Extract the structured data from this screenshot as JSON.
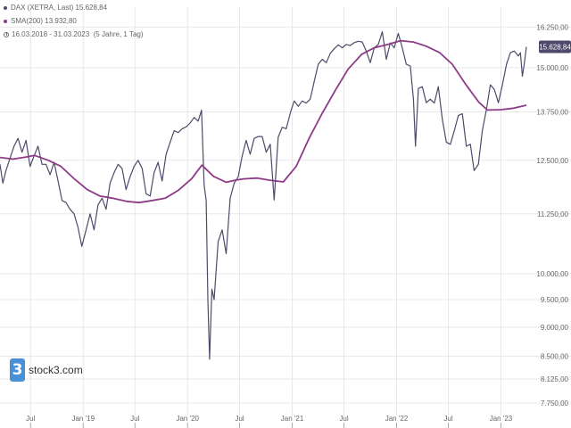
{
  "header": {
    "main_label": "DAX (XETRA, Last)",
    "main_value": "15.628,84",
    "sma_label": "SMA(200)",
    "sma_value": "13.932,80",
    "period": "16.03.2018 - 31.03.2023",
    "interval": "(5 Jahre, 1 Tag)"
  },
  "brand": {
    "logo_char": "3",
    "name": "stock3.com",
    "color": "#4a90d9"
  },
  "colors": {
    "price_line": "#4f4a6b",
    "sma_line": "#8e3b87",
    "badge": "#4f4a6b",
    "grid": "#e8e8e8",
    "text": "#666666"
  },
  "chart_data": {
    "type": "line",
    "title": "",
    "xlabel": "",
    "ylabel": "",
    "scale": "log",
    "ylim": [
      7750,
      16900
    ],
    "y_ticks": [
      16250,
      15000,
      13750,
      12500,
      11250,
      10000,
      9500,
      9000,
      8500,
      8125,
      7750
    ],
    "y_tick_labels": [
      "16.250,00",
      "15.000,00",
      "13.750,00",
      "12.500,00",
      "11.250,00",
      "10.000,00",
      "9.500,00",
      "9.000,00",
      "8.500,00",
      "8.125,00",
      "7.750,00"
    ],
    "x_range": [
      "2018-03-16",
      "2023-03-31"
    ],
    "x_ticks": [
      "2018-07-01",
      "2019-01-01",
      "2019-07-01",
      "2020-01-01",
      "2020-07-01",
      "2021-01-01",
      "2021-07-01",
      "2022-01-01",
      "2022-07-01",
      "2023-01-01"
    ],
    "x_tick_labels": [
      "Jul",
      "Jan '19",
      "Jul",
      "Jan '20",
      "Jul",
      "Jan '21",
      "Jul",
      "Jan '22",
      "Jul",
      "Jan '23"
    ],
    "last_value_label": "15.628,84",
    "last_value": 15628.84,
    "series": [
      {
        "name": "DAX (XETRA, Last)",
        "dates": [
          "2018-03-16",
          "2018-03-26",
          "2018-04-06",
          "2018-04-20",
          "2018-05-04",
          "2018-05-18",
          "2018-06-01",
          "2018-06-15",
          "2018-06-29",
          "2018-07-13",
          "2018-07-27",
          "2018-08-10",
          "2018-08-24",
          "2018-09-07",
          "2018-09-21",
          "2018-10-05",
          "2018-10-19",
          "2018-11-02",
          "2018-11-16",
          "2018-11-30",
          "2018-12-14",
          "2018-12-27",
          "2019-01-11",
          "2019-01-25",
          "2019-02-08",
          "2019-02-22",
          "2019-03-08",
          "2019-03-22",
          "2019-04-05",
          "2019-04-19",
          "2019-05-03",
          "2019-05-17",
          "2019-05-31",
          "2019-06-14",
          "2019-06-28",
          "2019-07-12",
          "2019-07-26",
          "2019-08-09",
          "2019-08-23",
          "2019-09-06",
          "2019-09-20",
          "2019-10-04",
          "2019-10-18",
          "2019-11-01",
          "2019-11-15",
          "2019-11-29",
          "2019-12-13",
          "2019-12-27",
          "2020-01-10",
          "2020-01-24",
          "2020-02-07",
          "2020-02-19",
          "2020-02-28",
          "2020-03-06",
          "2020-03-12",
          "2020-03-18",
          "2020-03-26",
          "2020-04-03",
          "2020-04-17",
          "2020-05-01",
          "2020-05-15",
          "2020-05-29",
          "2020-06-12",
          "2020-06-26",
          "2020-07-10",
          "2020-07-24",
          "2020-08-07",
          "2020-08-21",
          "2020-09-04",
          "2020-09-18",
          "2020-10-02",
          "2020-10-16",
          "2020-10-30",
          "2020-11-13",
          "2020-11-27",
          "2020-12-11",
          "2020-12-28",
          "2021-01-08",
          "2021-01-22",
          "2021-02-05",
          "2021-02-19",
          "2021-03-05",
          "2021-03-19",
          "2021-04-02",
          "2021-04-16",
          "2021-04-30",
          "2021-05-14",
          "2021-05-28",
          "2021-06-11",
          "2021-06-25",
          "2021-07-09",
          "2021-07-23",
          "2021-08-06",
          "2021-08-20",
          "2021-09-03",
          "2021-09-17",
          "2021-10-01",
          "2021-10-15",
          "2021-10-29",
          "2021-11-12",
          "2021-11-26",
          "2021-12-10",
          "2021-12-24",
          "2022-01-07",
          "2022-01-21",
          "2022-02-04",
          "2022-02-18",
          "2022-03-01",
          "2022-03-08",
          "2022-03-18",
          "2022-04-01",
          "2022-04-15",
          "2022-04-29",
          "2022-05-13",
          "2022-05-27",
          "2022-06-10",
          "2022-06-24",
          "2022-07-08",
          "2022-07-22",
          "2022-08-05",
          "2022-08-19",
          "2022-09-02",
          "2022-09-16",
          "2022-09-29",
          "2022-10-14",
          "2022-10-28",
          "2022-11-11",
          "2022-11-25",
          "2022-12-09",
          "2022-12-23",
          "2023-01-06",
          "2023-01-20",
          "2023-02-03",
          "2023-02-17",
          "2023-03-03",
          "2023-03-10",
          "2023-03-17",
          "2023-03-24",
          "2023-03-31"
        ],
        "values": [
          12400,
          11950,
          12250,
          12550,
          12850,
          13050,
          12700,
          13000,
          12350,
          12600,
          12850,
          12400,
          12400,
          12150,
          12450,
          12000,
          11550,
          11500,
          11350,
          11250,
          10950,
          10550,
          10900,
          11250,
          10900,
          11450,
          11600,
          11350,
          11950,
          12200,
          12400,
          12300,
          11800,
          12100,
          12350,
          12500,
          12300,
          11700,
          11650,
          12200,
          12450,
          12000,
          12650,
          12950,
          13250,
          13200,
          13300,
          13350,
          13450,
          13600,
          13500,
          13800,
          11900,
          11550,
          9500,
          8450,
          9700,
          9500,
          10650,
          10900,
          10400,
          11600,
          11950,
          12100,
          12600,
          13000,
          12650,
          13050,
          13100,
          13100,
          12700,
          12900,
          11560,
          13080,
          13340,
          13300,
          13790,
          14050,
          13900,
          14050,
          13990,
          14100,
          14600,
          15100,
          15250,
          15150,
          15430,
          15570,
          15690,
          15600,
          15700,
          15670,
          15760,
          15800,
          15780,
          15500,
          15150,
          15600,
          15700,
          16100,
          15250,
          15750,
          15600,
          16050,
          15600,
          15100,
          15050,
          14100,
          12850,
          14400,
          14450,
          14000,
          14100,
          13990,
          14450,
          13550,
          12950,
          12900,
          13250,
          13650,
          13700,
          12850,
          12900,
          12250,
          12400,
          13250,
          13800,
          14500,
          14370,
          14000,
          14500,
          15090,
          15450,
          15500,
          15350,
          15450,
          14750,
          15150,
          15628.84
        ]
      },
      {
        "name": "SMA(200)",
        "dates": [
          "2018-03-16",
          "2018-05-01",
          "2018-06-15",
          "2018-07-15",
          "2018-09-01",
          "2018-10-15",
          "2018-12-01",
          "2019-01-15",
          "2019-03-01",
          "2019-04-15",
          "2019-06-01",
          "2019-07-15",
          "2019-09-01",
          "2019-10-15",
          "2019-12-01",
          "2020-01-15",
          "2020-02-20",
          "2020-04-01",
          "2020-05-15",
          "2020-06-15",
          "2020-07-15",
          "2020-09-01",
          "2020-10-15",
          "2020-12-01",
          "2021-01-15",
          "2021-03-01",
          "2021-04-15",
          "2021-06-01",
          "2021-07-15",
          "2021-09-01",
          "2021-10-15",
          "2021-12-01",
          "2022-01-15",
          "2022-03-01",
          "2022-04-15",
          "2022-06-01",
          "2022-07-15",
          "2022-09-01",
          "2022-10-15",
          "2022-11-15",
          "2023-01-01",
          "2023-02-15",
          "2023-03-31"
        ],
        "values": [
          12570,
          12530,
          12580,
          12620,
          12500,
          12350,
          12050,
          11800,
          11650,
          11600,
          11530,
          11500,
          11550,
          11600,
          11790,
          12050,
          12380,
          12110,
          11970,
          12020,
          12050,
          12070,
          12020,
          11980,
          12350,
          13050,
          13700,
          14350,
          14950,
          15400,
          15600,
          15700,
          15820,
          15780,
          15650,
          15450,
          15100,
          14500,
          14020,
          13800,
          13810,
          13850,
          13932.8
        ]
      }
    ]
  }
}
